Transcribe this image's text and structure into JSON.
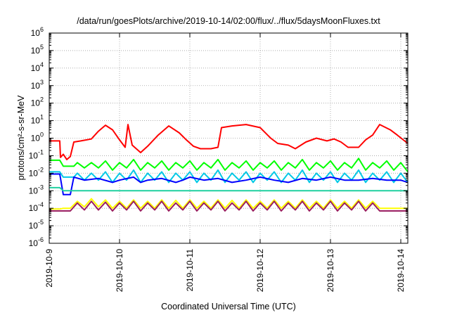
{
  "chart_data": {
    "type": "line",
    "title": "/data/run/goesPlots/archive/2019-10-14/02:00/flux/../flux/5daysMoonFluxes.txt",
    "xlabel": "Coordinated Universal Time (UTC)",
    "ylabel": "protons/cm²-s-sr-MeV",
    "y_scale": "log",
    "ylim_exponents": [
      -6,
      6
    ],
    "y_ticks": [
      {
        "base": "10",
        "exp": "6"
      },
      {
        "base": "10",
        "exp": "5"
      },
      {
        "base": "10",
        "exp": "4"
      },
      {
        "base": "10",
        "exp": "3"
      },
      {
        "base": "10",
        "exp": "2"
      },
      {
        "base": "10",
        "exp": "1"
      },
      {
        "base": "10",
        "exp": "0"
      },
      {
        "base": "10",
        "exp": "-1"
      },
      {
        "base": "10",
        "exp": "-2"
      },
      {
        "base": "10",
        "exp": "-3"
      },
      {
        "base": "10",
        "exp": "-4"
      },
      {
        "base": "10",
        "exp": "-5"
      },
      {
        "base": "10",
        "exp": "-6"
      }
    ],
    "x_ticks": [
      "2019-10-9",
      "2019-10-10",
      "2019-10-11",
      "2019-10-12",
      "2019-10-13",
      "2019-10-14"
    ],
    "xlim_days": [
      0,
      5.1
    ],
    "grid": true,
    "series": [
      {
        "color": "#ff0000",
        "points": [
          [
            0.0,
            0.7
          ],
          [
            0.15,
            0.7
          ],
          [
            0.16,
            0.08
          ],
          [
            0.2,
            0.12
          ],
          [
            0.25,
            0.06
          ],
          [
            0.3,
            0.09
          ],
          [
            0.35,
            0.6
          ],
          [
            0.45,
            0.7
          ],
          [
            0.6,
            0.9
          ],
          [
            0.7,
            2.5
          ],
          [
            0.8,
            5.5
          ],
          [
            0.9,
            3.0
          ],
          [
            1.0,
            0.8
          ],
          [
            1.08,
            0.3
          ],
          [
            1.12,
            6.0
          ],
          [
            1.18,
            0.4
          ],
          [
            1.3,
            0.15
          ],
          [
            1.4,
            0.35
          ],
          [
            1.55,
            1.5
          ],
          [
            1.7,
            5.0
          ],
          [
            1.85,
            2.0
          ],
          [
            1.95,
            0.8
          ],
          [
            2.05,
            0.35
          ],
          [
            2.15,
            0.25
          ],
          [
            2.3,
            0.25
          ],
          [
            2.4,
            0.3
          ],
          [
            2.45,
            4.0
          ],
          [
            2.6,
            5.0
          ],
          [
            2.8,
            6.0
          ],
          [
            3.0,
            4.0
          ],
          [
            3.15,
            1.0
          ],
          [
            3.25,
            0.5
          ],
          [
            3.4,
            0.4
          ],
          [
            3.5,
            0.25
          ],
          [
            3.65,
            0.6
          ],
          [
            3.8,
            1.0
          ],
          [
            3.95,
            0.7
          ],
          [
            4.05,
            0.9
          ],
          [
            4.15,
            0.6
          ],
          [
            4.25,
            0.3
          ],
          [
            4.4,
            0.3
          ],
          [
            4.5,
            0.8
          ],
          [
            4.6,
            1.5
          ],
          [
            4.7,
            6.0
          ],
          [
            4.85,
            3.0
          ],
          [
            4.95,
            1.5
          ],
          [
            5.1,
            0.5
          ]
        ]
      },
      {
        "color": "#00ff00",
        "points": [
          [
            0.0,
            0.055
          ],
          [
            0.15,
            0.055
          ],
          [
            0.2,
            0.025
          ],
          [
            0.35,
            0.025
          ],
          [
            0.4,
            0.04
          ],
          [
            0.5,
            0.02
          ],
          [
            0.6,
            0.04
          ],
          [
            0.7,
            0.02
          ],
          [
            0.8,
            0.05
          ],
          [
            0.9,
            0.015
          ],
          [
            1.0,
            0.04
          ],
          [
            1.1,
            0.02
          ],
          [
            1.2,
            0.06
          ],
          [
            1.3,
            0.015
          ],
          [
            1.4,
            0.04
          ],
          [
            1.5,
            0.02
          ],
          [
            1.6,
            0.05
          ],
          [
            1.7,
            0.015
          ],
          [
            1.8,
            0.04
          ],
          [
            1.9,
            0.02
          ],
          [
            2.0,
            0.05
          ],
          [
            2.1,
            0.015
          ],
          [
            2.2,
            0.04
          ],
          [
            2.3,
            0.02
          ],
          [
            2.4,
            0.06
          ],
          [
            2.5,
            0.015
          ],
          [
            2.6,
            0.04
          ],
          [
            2.7,
            0.02
          ],
          [
            2.8,
            0.05
          ],
          [
            2.9,
            0.015
          ],
          [
            3.0,
            0.04
          ],
          [
            3.1,
            0.02
          ],
          [
            3.2,
            0.05
          ],
          [
            3.3,
            0.015
          ],
          [
            3.4,
            0.04
          ],
          [
            3.5,
            0.02
          ],
          [
            3.6,
            0.06
          ],
          [
            3.7,
            0.015
          ],
          [
            3.8,
            0.04
          ],
          [
            3.9,
            0.02
          ],
          [
            4.0,
            0.05
          ],
          [
            4.1,
            0.015
          ],
          [
            4.2,
            0.04
          ],
          [
            4.3,
            0.02
          ],
          [
            4.4,
            0.07
          ],
          [
            4.5,
            0.015
          ],
          [
            4.6,
            0.04
          ],
          [
            4.7,
            0.02
          ],
          [
            4.8,
            0.05
          ],
          [
            4.9,
            0.015
          ],
          [
            5.0,
            0.04
          ],
          [
            5.1,
            0.012
          ]
        ]
      },
      {
        "color": "#00c8e6",
        "points": [
          [
            0.0,
            0.012
          ],
          [
            0.15,
            0.012
          ],
          [
            0.2,
            0.006
          ],
          [
            0.35,
            0.006
          ],
          [
            0.4,
            0.01
          ],
          [
            0.5,
            0.004
          ],
          [
            0.6,
            0.01
          ],
          [
            0.7,
            0.004
          ],
          [
            0.8,
            0.012
          ],
          [
            0.9,
            0.003
          ],
          [
            1.0,
            0.01
          ],
          [
            1.1,
            0.004
          ],
          [
            1.2,
            0.015
          ],
          [
            1.3,
            0.003
          ],
          [
            1.4,
            0.01
          ],
          [
            1.5,
            0.004
          ],
          [
            1.6,
            0.012
          ],
          [
            1.7,
            0.003
          ],
          [
            1.8,
            0.01
          ],
          [
            1.9,
            0.004
          ],
          [
            2.0,
            0.012
          ],
          [
            2.1,
            0.003
          ],
          [
            2.2,
            0.01
          ],
          [
            2.3,
            0.004
          ],
          [
            2.4,
            0.015
          ],
          [
            2.5,
            0.003
          ],
          [
            2.6,
            0.01
          ],
          [
            2.7,
            0.004
          ],
          [
            2.8,
            0.012
          ],
          [
            2.9,
            0.003
          ],
          [
            3.0,
            0.01
          ],
          [
            3.1,
            0.004
          ],
          [
            3.2,
            0.012
          ],
          [
            3.3,
            0.003
          ],
          [
            3.4,
            0.01
          ],
          [
            3.5,
            0.004
          ],
          [
            3.6,
            0.015
          ],
          [
            3.7,
            0.003
          ],
          [
            3.8,
            0.01
          ],
          [
            3.9,
            0.004
          ],
          [
            4.0,
            0.012
          ],
          [
            4.1,
            0.003
          ],
          [
            4.2,
            0.01
          ],
          [
            4.3,
            0.004
          ],
          [
            4.4,
            0.015
          ],
          [
            4.5,
            0.003
          ],
          [
            4.6,
            0.01
          ],
          [
            4.7,
            0.004
          ],
          [
            4.8,
            0.012
          ],
          [
            4.9,
            0.003
          ],
          [
            5.0,
            0.01
          ],
          [
            5.1,
            0.003
          ]
        ]
      },
      {
        "color": "#0000ff",
        "points": [
          [
            0.0,
            0.009
          ],
          [
            0.15,
            0.009
          ],
          [
            0.2,
            0.0006
          ],
          [
            0.3,
            0.0006
          ],
          [
            0.35,
            0.006
          ],
          [
            0.5,
            0.004
          ],
          [
            0.7,
            0.005
          ],
          [
            0.9,
            0.003
          ],
          [
            1.0,
            0.004
          ],
          [
            1.2,
            0.006
          ],
          [
            1.3,
            0.003
          ],
          [
            1.4,
            0.004
          ],
          [
            1.6,
            0.005
          ],
          [
            1.8,
            0.003
          ],
          [
            1.9,
            0.004
          ],
          [
            2.0,
            0.006
          ],
          [
            2.2,
            0.004
          ],
          [
            2.4,
            0.005
          ],
          [
            2.6,
            0.003
          ],
          [
            2.8,
            0.004
          ],
          [
            3.0,
            0.006
          ],
          [
            3.2,
            0.004
          ],
          [
            3.4,
            0.003
          ],
          [
            3.6,
            0.005
          ],
          [
            3.8,
            0.004
          ],
          [
            4.0,
            0.006
          ],
          [
            4.2,
            0.004
          ],
          [
            4.4,
            0.004
          ],
          [
            4.6,
            0.005
          ],
          [
            4.8,
            0.004
          ],
          [
            5.0,
            0.004
          ],
          [
            5.1,
            0.003
          ]
        ]
      },
      {
        "color": "#20d0a0",
        "points": [
          [
            0.0,
            0.0015
          ],
          [
            0.15,
            0.0015
          ],
          [
            0.2,
            0.001
          ],
          [
            1.0,
            0.001
          ],
          [
            2.0,
            0.001
          ],
          [
            3.0,
            0.001
          ],
          [
            4.0,
            0.001
          ],
          [
            5.1,
            0.001
          ]
        ]
      },
      {
        "color": "#ffff00",
        "points": [
          [
            0.0,
            9e-05
          ],
          [
            0.15,
            9e-05
          ],
          [
            0.2,
            0.0001
          ],
          [
            0.3,
            0.0001
          ],
          [
            0.4,
            0.00025
          ],
          [
            0.5,
            0.00012
          ],
          [
            0.6,
            0.00035
          ],
          [
            0.7,
            0.00012
          ],
          [
            0.8,
            0.0003
          ],
          [
            0.9,
            0.0001
          ],
          [
            1.0,
            0.00025
          ],
          [
            1.1,
            0.0001
          ],
          [
            1.2,
            0.0003
          ],
          [
            1.3,
            0.0001
          ],
          [
            1.4,
            0.00025
          ],
          [
            1.5,
            0.0001
          ],
          [
            1.6,
            0.0003
          ],
          [
            1.7,
            0.0001
          ],
          [
            1.8,
            0.00028
          ],
          [
            1.9,
            0.0001
          ],
          [
            2.0,
            0.0003
          ],
          [
            2.1,
            0.0001
          ],
          [
            2.2,
            0.00025
          ],
          [
            2.3,
            0.0001
          ],
          [
            2.4,
            0.0003
          ],
          [
            2.5,
            0.0001
          ],
          [
            2.6,
            0.00028
          ],
          [
            2.7,
            0.0001
          ],
          [
            2.8,
            0.0003
          ],
          [
            2.9,
            0.0001
          ],
          [
            3.0,
            0.00025
          ],
          [
            3.1,
            0.0001
          ],
          [
            3.2,
            0.0003
          ],
          [
            3.3,
            0.0001
          ],
          [
            3.4,
            0.00025
          ],
          [
            3.5,
            0.0001
          ],
          [
            3.6,
            0.0003
          ],
          [
            3.7,
            0.0001
          ],
          [
            3.8,
            0.00025
          ],
          [
            3.9,
            0.0001
          ],
          [
            4.0,
            0.0003
          ],
          [
            4.1,
            0.0001
          ],
          [
            4.2,
            0.00025
          ],
          [
            4.3,
            0.0001
          ],
          [
            4.4,
            0.0003
          ],
          [
            4.5,
            0.0001
          ],
          [
            4.6,
            0.00025
          ],
          [
            4.7,
            0.0001
          ],
          [
            4.8,
            0.0001
          ],
          [
            5.1,
            0.0001
          ]
        ]
      },
      {
        "color": "#9b2060",
        "points": [
          [
            0.0,
            7e-05
          ],
          [
            0.15,
            7e-05
          ],
          [
            0.2,
            7e-05
          ],
          [
            0.3,
            7e-05
          ],
          [
            0.4,
            0.0002
          ],
          [
            0.5,
            8e-05
          ],
          [
            0.6,
            0.00025
          ],
          [
            0.7,
            8e-05
          ],
          [
            0.8,
            0.00022
          ],
          [
            0.9,
            7e-05
          ],
          [
            1.0,
            0.0002
          ],
          [
            1.1,
            8e-05
          ],
          [
            1.2,
            0.00025
          ],
          [
            1.3,
            7e-05
          ],
          [
            1.4,
            0.0002
          ],
          [
            1.5,
            8e-05
          ],
          [
            1.6,
            0.00025
          ],
          [
            1.7,
            7e-05
          ],
          [
            1.8,
            0.0002
          ],
          [
            1.9,
            8e-05
          ],
          [
            2.0,
            0.00025
          ],
          [
            2.1,
            7e-05
          ],
          [
            2.2,
            0.0002
          ],
          [
            2.3,
            8e-05
          ],
          [
            2.4,
            0.00025
          ],
          [
            2.5,
            7e-05
          ],
          [
            2.6,
            0.0002
          ],
          [
            2.7,
            8e-05
          ],
          [
            2.8,
            0.00025
          ],
          [
            2.9,
            7e-05
          ],
          [
            3.0,
            0.0002
          ],
          [
            3.1,
            8e-05
          ],
          [
            3.2,
            0.00025
          ],
          [
            3.3,
            7e-05
          ],
          [
            3.4,
            0.0002
          ],
          [
            3.5,
            8e-05
          ],
          [
            3.6,
            0.00025
          ],
          [
            3.7,
            7e-05
          ],
          [
            3.8,
            0.0002
          ],
          [
            3.9,
            8e-05
          ],
          [
            4.0,
            0.00025
          ],
          [
            4.1,
            7e-05
          ],
          [
            4.2,
            0.0002
          ],
          [
            4.3,
            8e-05
          ],
          [
            4.4,
            0.00025
          ],
          [
            4.5,
            7e-05
          ],
          [
            4.6,
            0.0002
          ],
          [
            4.7,
            7e-05
          ],
          [
            4.8,
            7e-05
          ],
          [
            5.1,
            7e-05
          ]
        ]
      }
    ]
  }
}
